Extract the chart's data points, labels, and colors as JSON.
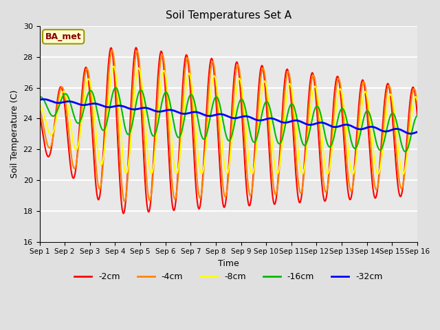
{
  "title": "Soil Temperatures Set A",
  "xlabel": "Time",
  "ylabel": "Soil Temperature (C)",
  "ylim": [
    16,
    30
  ],
  "xlim_days": 15,
  "annotation": "BA_met",
  "legend_entries": [
    "-2cm",
    "-4cm",
    "-8cm",
    "-16cm",
    "-32cm"
  ],
  "line_colors": [
    "#ff0000",
    "#ff8800",
    "#ffff00",
    "#00bb00",
    "#0000ff"
  ],
  "line_widths": [
    1.5,
    1.5,
    1.5,
    1.5,
    2.0
  ],
  "bg_color": "#e0e0e0",
  "plot_bg_color": "#e8e8e8",
  "grid_color": "#ffffff",
  "depths": {
    "mean_start": [
      23.5,
      23.8,
      24.2,
      24.9,
      25.2
    ],
    "mean_end": [
      22.5,
      22.7,
      22.9,
      23.0,
      23.1
    ],
    "amp_start": [
      1.5,
      1.2,
      0.8,
      0.5,
      0.08
    ],
    "amp_peak": [
      5.5,
      5.0,
      3.5,
      1.5,
      0.08
    ],
    "amp_end": [
      3.5,
      3.2,
      2.5,
      1.2,
      0.12
    ],
    "peak_day": 3.0,
    "phase_shift_hrs": [
      0,
      1.0,
      2.5,
      4.5,
      9.0
    ]
  },
  "n_points": 4320,
  "days": 15,
  "tick_positions": [
    0,
    1,
    2,
    3,
    4,
    5,
    6,
    7,
    8,
    9,
    10,
    11,
    12,
    13,
    14,
    15
  ],
  "tick_labels": [
    "Sep 1",
    "Sep 2",
    "Sep 3",
    "Sep 4",
    "Sep 5",
    "Sep 6",
    "Sep 7",
    "Sep 8",
    "Sep 9",
    "Sep 10",
    "Sep 11",
    "Sep 12",
    "Sep 13",
    "Sep 14",
    "Sep 15",
    "Sep 16"
  ]
}
